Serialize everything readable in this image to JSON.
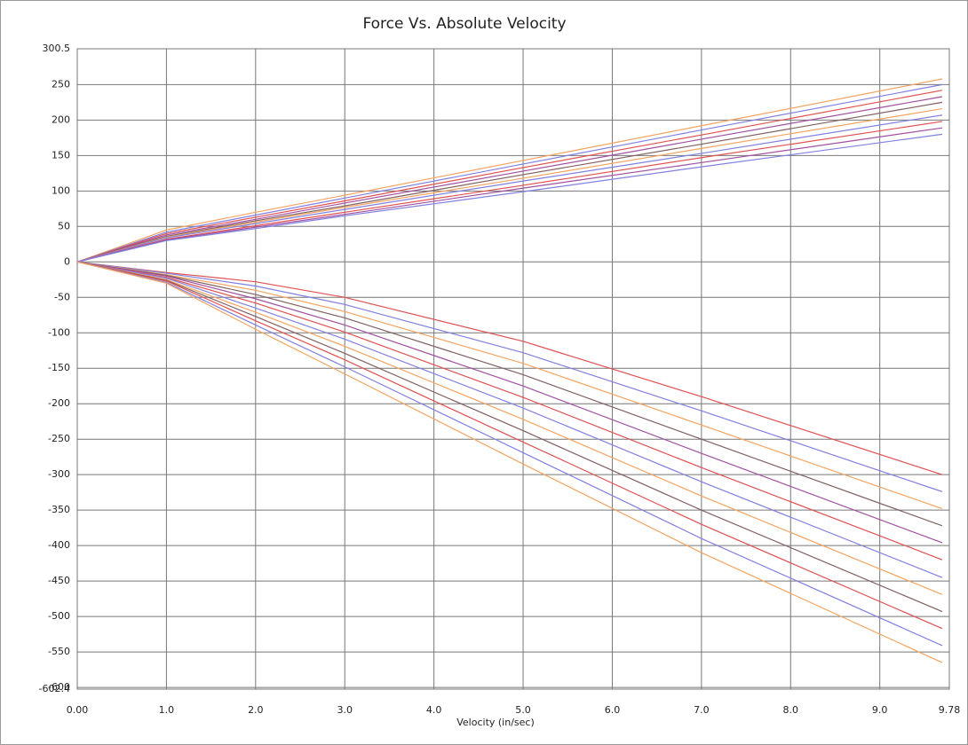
{
  "chart_data": {
    "type": "line",
    "title": "Force Vs. Absolute Velocity",
    "x_label": "Velocity (in/sec)",
    "x": [
      0,
      1,
      2,
      3,
      5,
      7,
      9.7
    ],
    "xlim": [
      0,
      9.78
    ],
    "xticks": [
      {
        "value": 0,
        "label": "0.00"
      },
      {
        "value": 1,
        "label": "1.0"
      },
      {
        "value": 2,
        "label": "2.0"
      },
      {
        "value": 3,
        "label": "3.0"
      },
      {
        "value": 4,
        "label": "4.0"
      },
      {
        "value": 5,
        "label": "5.0"
      },
      {
        "value": 6,
        "label": "6.0"
      },
      {
        "value": 7,
        "label": "7.0"
      },
      {
        "value": 8,
        "label": "8.0"
      },
      {
        "value": 9,
        "label": "9.0"
      },
      9.78
    ],
    "ylim": [
      -602.4,
      300.5
    ],
    "yticks": [
      300.5,
      250,
      200,
      150,
      100,
      50,
      0,
      -50,
      -100,
      -150,
      -200,
      -250,
      -300,
      -350,
      -400,
      -450,
      -500,
      -550,
      -600,
      -602.4
    ],
    "grid": true,
    "series": [
      {
        "color": "#f4a460",
        "values": [
          0,
          45,
          70,
          94,
          143,
          192,
          258
        ]
      },
      {
        "color": "#8080e0",
        "values": [
          0,
          42,
          66,
          90,
          138,
          186,
          250
        ]
      },
      {
        "color": "#e05050",
        "values": [
          0,
          40,
          63,
          86,
          133,
          179,
          242
        ]
      },
      {
        "color": "#a050a0",
        "values": [
          0,
          38,
          60,
          83,
          128,
          173,
          233
        ]
      },
      {
        "color": "#806060",
        "values": [
          0,
          36,
          58,
          79,
          123,
          166,
          225
        ]
      },
      {
        "color": "#f4a460",
        "values": [
          0,
          35,
          56,
          77,
          118,
          160,
          216
        ]
      },
      {
        "color": "#8080e0",
        "values": [
          0,
          34,
          54,
          74,
          114,
          153,
          207
        ]
      },
      {
        "color": "#e05050",
        "values": [
          0,
          32,
          51,
          70,
          108,
          147,
          198
        ]
      },
      {
        "color": "#a050a0",
        "values": [
          0,
          31,
          49,
          67,
          104,
          140,
          189
        ]
      },
      {
        "color": "#8080e0",
        "values": [
          0,
          30,
          47,
          65,
          99,
          134,
          180
        ]
      },
      {
        "color": "#e05050",
        "values": [
          0,
          -15,
          -28,
          -50,
          -112,
          -190,
          -300
        ]
      },
      {
        "color": "#8080e0",
        "values": [
          0,
          -16,
          -34,
          -60,
          -128,
          -210,
          -324
        ]
      },
      {
        "color": "#f4a460",
        "values": [
          0,
          -18,
          -40,
          -70,
          -143,
          -230,
          -348
        ]
      },
      {
        "color": "#806060",
        "values": [
          0,
          -19,
          -46,
          -79,
          -159,
          -250,
          -372
        ]
      },
      {
        "color": "#a050a0",
        "values": [
          0,
          -20,
          -52,
          -89,
          -175,
          -270,
          -396
        ]
      },
      {
        "color": "#e05050",
        "values": [
          0,
          -22,
          -58,
          -99,
          -191,
          -290,
          -420
        ]
      },
      {
        "color": "#8080e0",
        "values": [
          0,
          -23,
          -65,
          -109,
          -206,
          -310,
          -445
        ]
      },
      {
        "color": "#f4a460",
        "values": [
          0,
          -25,
          -71,
          -119,
          -222,
          -330,
          -469
        ]
      },
      {
        "color": "#806060",
        "values": [
          0,
          -26,
          -77,
          -129,
          -238,
          -350,
          -493
        ]
      },
      {
        "color": "#e05050",
        "values": [
          0,
          -27,
          -83,
          -138,
          -254,
          -370,
          -517
        ]
      },
      {
        "color": "#8080e0",
        "values": [
          0,
          -29,
          -89,
          -148,
          -269,
          -390,
          -541
        ]
      },
      {
        "color": "#f4a460",
        "values": [
          0,
          -30,
          -95,
          -158,
          -285,
          -410,
          -565
        ]
      }
    ]
  }
}
